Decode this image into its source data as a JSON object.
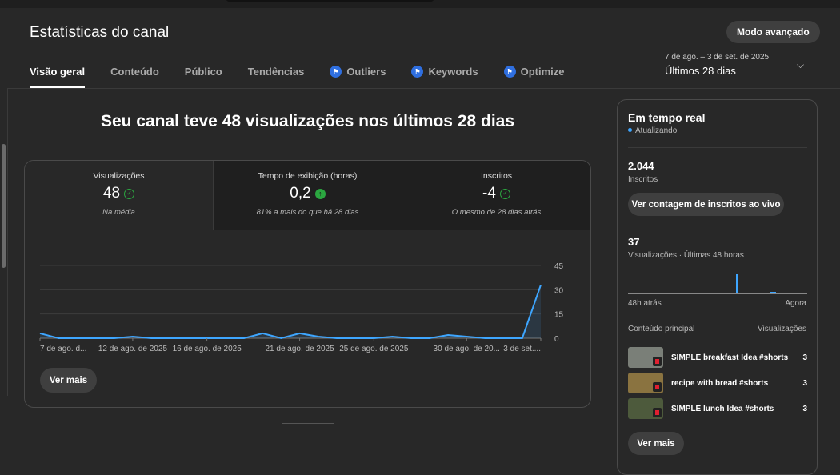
{
  "header": {
    "title": "Estatísticas do canal",
    "advanced_button": "Modo avançado"
  },
  "tabs": [
    {
      "label": "Visão geral",
      "active": true
    },
    {
      "label": "Conteúdo"
    },
    {
      "label": "Público"
    },
    {
      "label": "Tendências"
    },
    {
      "label": "Outliers",
      "icon": "extension-icon"
    },
    {
      "label": "Keywords",
      "icon": "extension-icon"
    },
    {
      "label": "Optimize",
      "icon": "extension-icon"
    }
  ],
  "date_range": {
    "range": "7 de ago. – 3 de set. de 2025",
    "label": "Últimos 28 dias"
  },
  "headline": "Seu canal teve 48 visualizações nos últimos 28 dias",
  "metrics": [
    {
      "label": "Visualizações",
      "value": "48",
      "icon": "check-circle-icon",
      "note": "Na média"
    },
    {
      "label": "Tempo de exibição (horas)",
      "value": "0,2",
      "icon": "arrow-up-icon",
      "note": "81% a mais do que há 28 dias"
    },
    {
      "label": "Inscritos",
      "value": "-4",
      "icon": "check-circle-icon",
      "note": "O mesmo de 28 dias atrás"
    }
  ],
  "chart_data": {
    "type": "area",
    "x_tick_labels": [
      "7 de ago. d...",
      "12 de ago. de 2025",
      "16 de ago. de 2025",
      "21 de ago. de 2025",
      "25 de ago. de 2025",
      "30 de ago. de 20...",
      "3 de set...."
    ],
    "x_tick_days": [
      0,
      5,
      9,
      14,
      18,
      23,
      27
    ],
    "y_ticks": [
      0,
      15,
      30,
      45
    ],
    "ylim": [
      0,
      45
    ],
    "values": [
      3,
      0,
      0,
      0,
      0,
      1,
      0,
      0,
      0,
      0,
      0,
      0,
      3,
      0,
      3,
      1,
      0,
      0,
      0,
      1,
      0,
      0,
      2,
      1,
      0,
      0,
      0,
      33
    ],
    "color": "#3ea6ff",
    "grid": true
  },
  "see_more": "Ver mais",
  "realtime": {
    "title": "Em tempo real",
    "status": "Atualizando",
    "subscribers": "2.044",
    "subscribers_label": "Inscritos",
    "live_button": "Ver contagem de inscritos ao vivo",
    "views": "37",
    "views_label": "Visualizações · Últimas 48 horas",
    "axis_start": "48h atrás",
    "axis_end": "Agora",
    "content_header": "Conteúdo principal",
    "views_header": "Visualizações",
    "items": [
      {
        "title": "SIMPLE breakfast Idea #shorts",
        "views": "3",
        "color": "#7a7f78"
      },
      {
        "title": "recipe with bread #shorts",
        "views": "3",
        "color": "#8a7340"
      },
      {
        "title": "SIMPLE lunch Idea #shorts",
        "views": "3",
        "color": "#4d5a3c"
      }
    ],
    "see_more": "Ver mais"
  }
}
